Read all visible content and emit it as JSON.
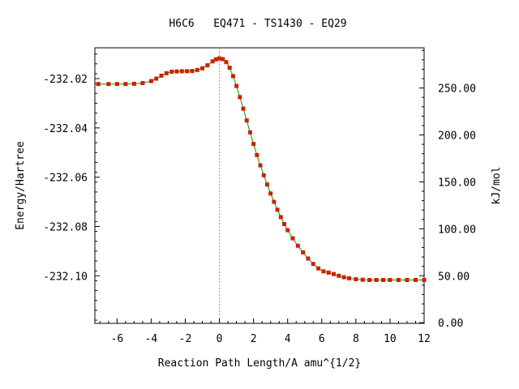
{
  "chart_data": {
    "type": "line",
    "title": "H6C6   EQ471 - TS1430 - EQ29",
    "xlabel": "Reaction Path Length/A amu^{1/2}",
    "ylabel": "Energy/Hartree",
    "y2label": "kJ/mol",
    "xlim": [
      -7.3,
      12
    ],
    "ylim": [
      -232.1193,
      -232.0075
    ],
    "y2lim": [
      -0.7,
      292.8
    ],
    "x_ticks": [
      "-6",
      "-4",
      "-2",
      "0",
      "2",
      "4",
      "6",
      "8",
      "10",
      "12"
    ],
    "y_ticks": [
      "-232.02",
      "-232.04",
      "-232.06",
      "-232.08",
      "-232.10"
    ],
    "y2_ticks": [
      "0.00",
      "50.00",
      "100.00",
      "150.00",
      "200.00",
      "250.00"
    ],
    "ts_x": 0,
    "colors": {
      "line": "#00a000",
      "marker": "#cc2200",
      "ts_line": "#999999"
    },
    "series": [
      {
        "x": [
          -7.1,
          -6.5,
          -6.0,
          -5.5,
          -5.0,
          -4.5,
          -4.0,
          -3.7,
          -3.4,
          -3.1,
          -2.8,
          -2.5,
          -2.2,
          -1.9,
          -1.6,
          -1.3,
          -1.0,
          -0.7,
          -0.4,
          -0.2,
          0.0,
          0.2,
          0.4,
          0.6,
          0.8,
          1.0,
          1.2,
          1.4,
          1.6,
          1.8,
          2.0,
          2.2,
          2.4,
          2.6,
          2.8,
          3.0,
          3.2,
          3.4,
          3.6,
          3.8,
          4.0,
          4.3,
          4.6,
          4.9,
          5.2,
          5.5,
          5.8,
          6.1,
          6.4,
          6.7,
          7.0,
          7.3,
          7.6,
          8.0,
          8.4,
          8.8,
          9.2,
          9.6,
          10.0,
          10.5,
          11.0,
          11.5,
          12.0
        ],
        "y": [
          -232.0222,
          -232.0222,
          -232.0222,
          -232.0222,
          -232.0221,
          -232.0218,
          -232.021,
          -232.02,
          -232.0188,
          -232.0178,
          -232.0172,
          -232.0171,
          -232.017,
          -232.017,
          -232.0169,
          -232.0165,
          -232.0158,
          -232.0146,
          -232.013,
          -232.0122,
          -232.0118,
          -232.0121,
          -232.0133,
          -232.0156,
          -232.019,
          -232.023,
          -232.0275,
          -232.0322,
          -232.037,
          -232.0418,
          -232.0465,
          -232.051,
          -232.0552,
          -232.0592,
          -232.063,
          -232.0666,
          -232.07,
          -232.0732,
          -232.0762,
          -232.079,
          -232.0815,
          -232.0848,
          -232.0878,
          -232.0905,
          -232.093,
          -232.0952,
          -232.097,
          -232.0982,
          -232.0987,
          -232.0993,
          -232.1,
          -232.1006,
          -232.101,
          -232.1014,
          -232.1016,
          -232.1017,
          -232.1017,
          -232.1017,
          -232.1017,
          -232.1017,
          -232.1017,
          -232.1017,
          -232.1017
        ]
      }
    ]
  }
}
